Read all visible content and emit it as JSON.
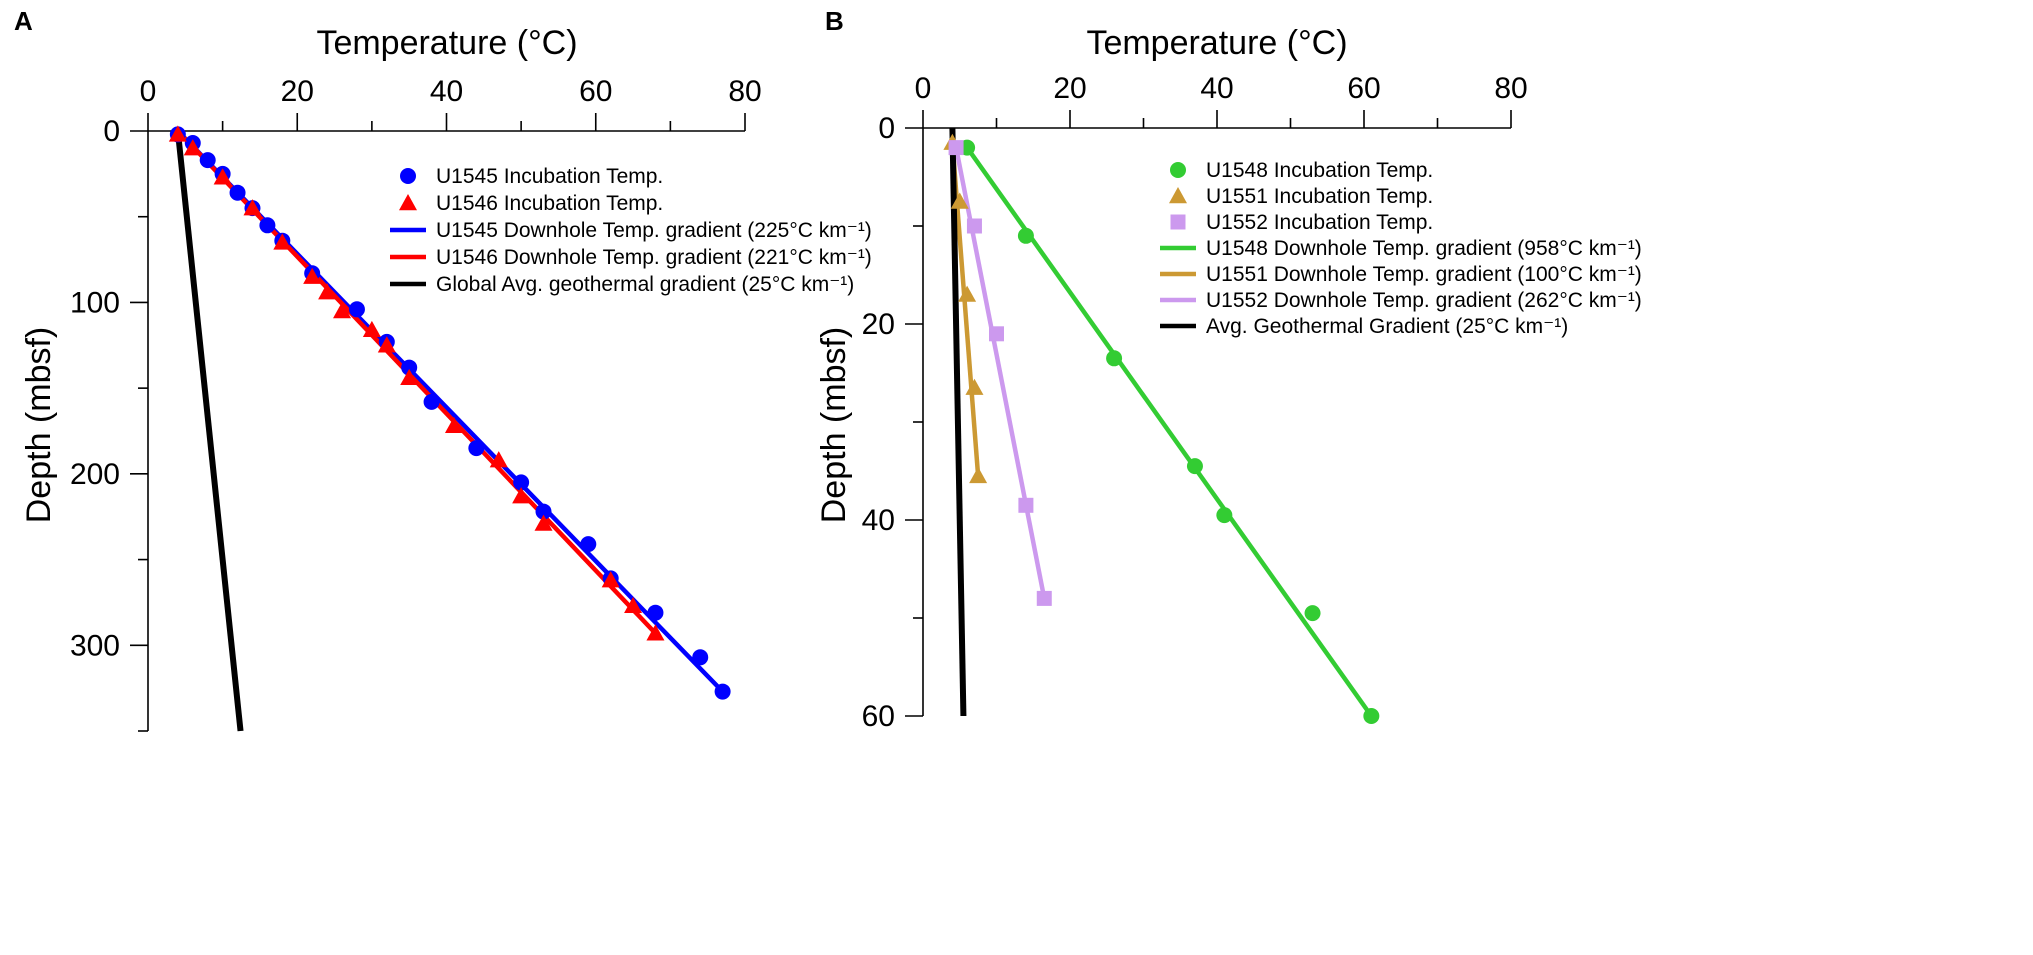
{
  "chart_data": [
    {
      "type": "scatter",
      "panel_label": "A",
      "xlabel": "Temperature (°C)",
      "ylabel": "Depth (mbsf)",
      "xlim": [
        0,
        80
      ],
      "ylim": [
        0,
        350
      ],
      "xticks": [
        0,
        20,
        40,
        60,
        80
      ],
      "yticks": [
        0,
        100,
        200,
        300
      ],
      "y_inverted": true,
      "x_axis_position": "top",
      "series": [
        {
          "name": "U1545 Incubation Temp.",
          "kind": "points",
          "marker": "circle",
          "color": "#0000ff",
          "x": [
            4,
            6,
            8,
            10,
            12,
            14,
            16,
            18,
            22,
            28,
            32,
            35,
            38,
            44,
            50,
            53,
            59,
            62,
            68,
            74,
            77
          ],
          "y": [
            2,
            7,
            17,
            25,
            36,
            45,
            55,
            64,
            83,
            104,
            123,
            138,
            158,
            185,
            205,
            222,
            241,
            261,
            281,
            307,
            327
          ]
        },
        {
          "name": "U1546 Incubation Temp.",
          "kind": "points",
          "marker": "triangle",
          "color": "#ff0000",
          "x": [
            4,
            6,
            10,
            14,
            18,
            22,
            24,
            26,
            30,
            32,
            35,
            41,
            47,
            50,
            53,
            62,
            65,
            68
          ],
          "y": [
            2,
            10,
            27,
            45,
            65,
            85,
            94,
            105,
            116,
            125,
            144,
            172,
            192,
            213,
            229,
            262,
            277,
            293
          ]
        },
        {
          "name": "U1545 Downhole Temp. gradient (225°C km⁻¹)",
          "kind": "line",
          "color": "#0000ff",
          "x": [
            4,
            77
          ],
          "y": [
            0,
            327
          ]
        },
        {
          "name": "U1546 Downhole Temp. gradient (221°C km⁻¹)",
          "kind": "line",
          "color": "#ff0000",
          "x": [
            4,
            68
          ],
          "y": [
            0,
            293
          ]
        },
        {
          "name": "Global Avg. geothermal gradient (25°C km⁻¹)",
          "kind": "line",
          "color": "#000000",
          "x": [
            4,
            12.4
          ],
          "y": [
            0,
            350
          ]
        }
      ]
    },
    {
      "type": "scatter",
      "panel_label": "B",
      "xlabel": "Temperature (°C)",
      "ylabel": "Depth (mbsf)",
      "xlim": [
        0,
        80
      ],
      "ylim": [
        0,
        60
      ],
      "xticks": [
        0,
        20,
        40,
        60,
        80
      ],
      "yticks": [
        0,
        20,
        40,
        60
      ],
      "y_inverted": true,
      "x_axis_position": "top",
      "series": [
        {
          "name": "U1548 Incubation Temp.",
          "kind": "points",
          "marker": "circle",
          "color": "#33cc33",
          "x": [
            6,
            14,
            26,
            37,
            41,
            53,
            61
          ],
          "y": [
            2,
            11,
            23.5,
            34.5,
            39.5,
            49.5,
            60
          ]
        },
        {
          "name": "U1551 Incubation Temp.",
          "kind": "points",
          "marker": "triangle",
          "color": "#cc9933",
          "x": [
            4,
            5,
            6,
            7,
            7.5
          ],
          "y": [
            1.5,
            7.5,
            17,
            26.5,
            35.5
          ]
        },
        {
          "name": "U1552 Incubation Temp.",
          "kind": "points",
          "marker": "square",
          "color": "#cc99ee",
          "x": [
            4.5,
            7,
            10,
            14,
            16.5
          ],
          "y": [
            2,
            10,
            21,
            38.5,
            48
          ]
        },
        {
          "name": "U1548 Downhole Temp. gradient (958°C km⁻¹)",
          "kind": "line",
          "color": "#33cc33",
          "x": [
            6,
            61
          ],
          "y": [
            2,
            60
          ]
        },
        {
          "name": "U1551 Downhole Temp. gradient (100°C km⁻¹)",
          "kind": "line",
          "color": "#cc9933",
          "x": [
            4,
            7.5
          ],
          "y": [
            1.5,
            35.5
          ]
        },
        {
          "name": "U1552 Downhole Temp. gradient (262°C km⁻¹)",
          "kind": "line",
          "color": "#cc99ee",
          "x": [
            4.5,
            16.5
          ],
          "y": [
            2,
            48
          ]
        },
        {
          "name": "Avg. Geothermal Gradient (25°C km⁻¹)",
          "kind": "line",
          "color": "#000000",
          "x": [
            4,
            5.5
          ],
          "y": [
            0,
            60
          ]
        }
      ]
    }
  ]
}
